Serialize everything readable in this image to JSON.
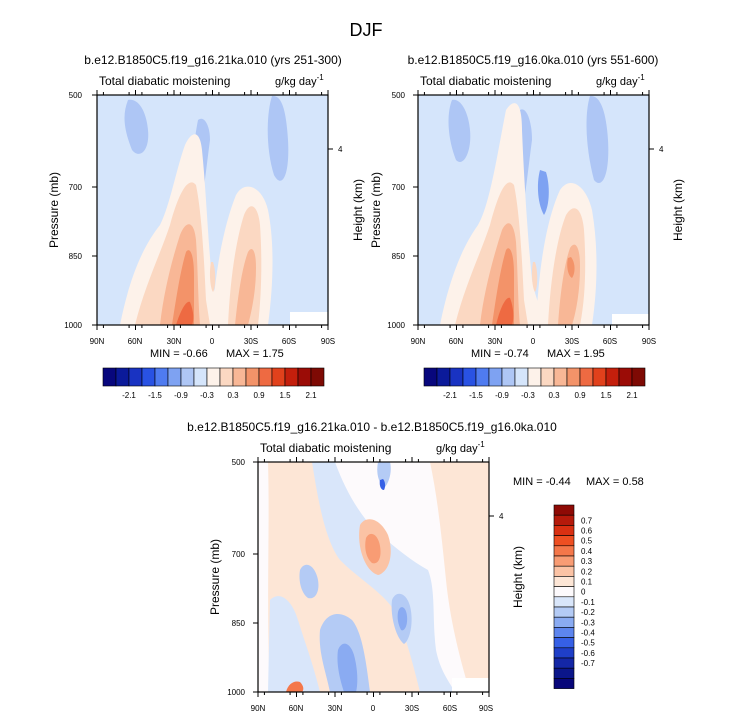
{
  "figure_title": "DJF",
  "shared": {
    "variable": "Total diabatic moistening",
    "units_base": "g/kg day",
    "units_exp": "-1",
    "ylabel": "Pressure (mb)",
    "ylabel_right": "Height (km)",
    "height_tick": "4",
    "x_ticks": [
      "90N",
      "60N",
      "30N",
      "0",
      "30S",
      "60S",
      "90S"
    ],
    "p_ticks": [
      "500",
      "700",
      "850",
      "1000"
    ]
  },
  "colorbar_top": {
    "labels": [
      "-2.1",
      "-1.5",
      "-0.9",
      "-0.3",
      "0.3",
      "0.9",
      "1.5",
      "2.1"
    ],
    "colors": [
      "#08077d",
      "#0b1a9a",
      "#1933c2",
      "#2952e3",
      "#4f7bf0",
      "#7ea2f2",
      "#aec6f5",
      "#d5e5fb",
      "#fdf2ea",
      "#fbd8c2",
      "#f8b796",
      "#f39369",
      "#ee6a42",
      "#e1411c",
      "#c41f0c",
      "#9b0c06",
      "#7e0a04"
    ]
  },
  "colorbar_diff": {
    "labels": [
      "0.7",
      "0.6",
      "0.5",
      "0.4",
      "0.3",
      "0.2",
      "0.1",
      "0",
      "-0.1",
      "-0.2",
      "-0.3",
      "-0.4",
      "-0.5",
      "-0.6",
      "-0.7"
    ],
    "colors": [
      "#8e0a05",
      "#b51a0b",
      "#d93012",
      "#ee4f22",
      "#f4774a",
      "#f89c74",
      "#fbc3a5",
      "#fde6d6",
      "#fdfafc",
      "#d9e6fa",
      "#b4cbf5",
      "#8aabf2",
      "#5d85ee",
      "#3660e6",
      "#1f3fc8",
      "#1427a6",
      "#0b168a",
      "#08077a"
    ]
  },
  "chart_data": [
    {
      "type": "contour",
      "title": "b.e12.B1850C5.f19_g16.21ka.010 (yrs 251-300)",
      "subtitle_left": "Total diabatic moistening",
      "units": "g/kg day-1",
      "xlabel": "",
      "ylabel": "Pressure (mb)",
      "y2label": "Height (km)",
      "x_categories": [
        "90N",
        "60N",
        "30N",
        "0",
        "30S",
        "60S",
        "90S"
      ],
      "y_categories": [
        "500",
        "700",
        "850",
        "1000"
      ],
      "stats": {
        "min_label": "MIN =",
        "min": "-0.66",
        "max_label": "MAX =",
        "max": "1.75"
      }
    },
    {
      "type": "contour",
      "title": "b.e12.B1850C5.f19_g16.0ka.010 (yrs 551-600)",
      "subtitle_left": "Total diabatic moistening",
      "units": "g/kg day-1",
      "xlabel": "",
      "ylabel": "Pressure (mb)",
      "y2label": "Height (km)",
      "x_categories": [
        "90N",
        "60N",
        "30N",
        "0",
        "30S",
        "60S",
        "90S"
      ],
      "y_categories": [
        "500",
        "700",
        "850",
        "1000"
      ],
      "stats": {
        "min_label": "MIN =",
        "min": "-0.74",
        "max_label": "MAX =",
        "max": "1.95"
      }
    },
    {
      "type": "contour",
      "title": "b.e12.B1850C5.f19_g16.21ka.010 - b.e12.B1850C5.f19_g16.0ka.010",
      "subtitle_left": "Total diabatic moistening",
      "units": "g/kg day-1",
      "xlabel": "",
      "ylabel": "Pressure (mb)",
      "y2label": "Height (km)",
      "x_categories": [
        "90N",
        "60N",
        "30N",
        "0",
        "30S",
        "60S",
        "90S"
      ],
      "y_categories": [
        "500",
        "700",
        "850",
        "1000"
      ],
      "stats": {
        "min_label": "MIN =",
        "min": "-0.44",
        "max_label": "MAX =",
        "max": "0.58"
      }
    }
  ]
}
